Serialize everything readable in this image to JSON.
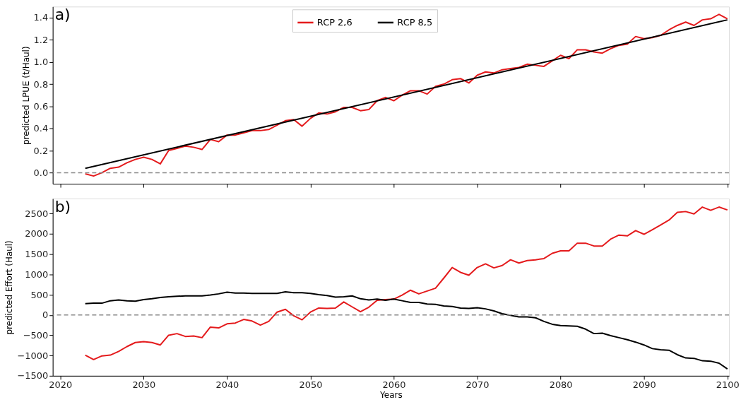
{
  "chart_data": [
    {
      "type": "line",
      "title": "a)",
      "ylabel": "predicted LPUE (t/Haul)",
      "xlim": [
        2019.1,
        2100.2
      ],
      "xticks": [
        2020,
        2030,
        2040,
        2050,
        2060,
        2070,
        2080,
        2090,
        2100
      ],
      "ylim": [
        -0.1,
        1.5
      ],
      "yticks": [
        {
          "value": 0,
          "label": "0.0"
        },
        0.2,
        0.4,
        0.6,
        0.8,
        {
          "value": 1,
          "label": "1.0"
        },
        1.2,
        1.4
      ],
      "tick_labels": "y",
      "grid": false,
      "legend": "top",
      "marker": "none",
      "line_style": "solid",
      "x": [
        2023,
        2024,
        2025,
        2026,
        2027,
        2028,
        2029,
        2030,
        2031,
        2032,
        2033,
        2034,
        2035,
        2036,
        2037,
        2038,
        2039,
        2040,
        2041,
        2042,
        2043,
        2044,
        2045,
        2046,
        2047,
        2048,
        2049,
        2050,
        2051,
        2052,
        2053,
        2054,
        2055,
        2056,
        2057,
        2058,
        2059,
        2060,
        2061,
        2062,
        2063,
        2064,
        2065,
        2066,
        2067,
        2068,
        2069,
        2070,
        2071,
        2072,
        2073,
        2074,
        2075,
        2076,
        2077,
        2078,
        2079,
        2080,
        2081,
        2082,
        2083,
        2084,
        2085,
        2086,
        2087,
        2088,
        2089,
        2090,
        2091,
        2092,
        2093,
        2094,
        2095,
        2096,
        2097,
        2098,
        2099,
        2100
      ],
      "series": [
        {
          "name": "RCP 2,6",
          "color": "#e41a1c",
          "values": [
            -0.01,
            -0.03,
            0.0,
            0.04,
            0.05,
            0.09,
            0.12,
            0.14,
            0.12,
            0.08,
            0.2,
            0.22,
            0.24,
            0.23,
            0.21,
            0.3,
            0.28,
            0.34,
            0.34,
            0.36,
            0.38,
            0.38,
            0.39,
            0.43,
            0.47,
            0.48,
            0.42,
            0.49,
            0.54,
            0.53,
            0.55,
            0.59,
            0.59,
            0.56,
            0.57,
            0.65,
            0.68,
            0.65,
            0.7,
            0.74,
            0.74,
            0.71,
            0.78,
            0.8,
            0.84,
            0.85,
            0.81,
            0.88,
            0.91,
            0.9,
            0.93,
            0.94,
            0.95,
            0.98,
            0.97,
            0.96,
            1.01,
            1.06,
            1.03,
            1.11,
            1.11,
            1.09,
            1.08,
            1.12,
            1.15,
            1.16,
            1.23,
            1.21,
            1.22,
            1.24,
            1.29,
            1.33,
            1.36,
            1.33,
            1.38,
            1.39,
            1.43,
            1.39
          ]
        },
        {
          "name": "RCP 8,5",
          "color": "#000000",
          "x": [
            2023,
            2100
          ],
          "values": [
            0.04,
            1.38
          ]
        }
      ],
      "ref_lines": [
        {
          "axis": "y",
          "value": 0,
          "color": "#888888",
          "line_style": "dashed"
        }
      ]
    },
    {
      "type": "line",
      "title": "b)",
      "xlabel": "Years",
      "ylabel": "predicted Effort (Haul)",
      "xlim": [
        2019.1,
        2100.2
      ],
      "xticks": [
        2020,
        2030,
        2040,
        2050,
        2060,
        2070,
        2080,
        2090,
        2100
      ],
      "ylim": [
        -1500,
        2870
      ],
      "yticks": [
        {
          "value": -1500,
          "label": "−1500"
        },
        {
          "value": -1000,
          "label": "−1000"
        },
        {
          "value": -500,
          "label": "−500"
        },
        0,
        500,
        1000,
        1500,
        2000,
        2500
      ],
      "grid": false,
      "marker": "none",
      "line_style": "solid",
      "x": [
        2023,
        2024,
        2025,
        2026,
        2027,
        2028,
        2029,
        2030,
        2031,
        2032,
        2033,
        2034,
        2035,
        2036,
        2037,
        2038,
        2039,
        2040,
        2041,
        2042,
        2043,
        2044,
        2045,
        2046,
        2047,
        2048,
        2049,
        2050,
        2051,
        2052,
        2053,
        2054,
        2055,
        2056,
        2057,
        2058,
        2059,
        2060,
        2061,
        2062,
        2063,
        2064,
        2065,
        2066,
        2067,
        2068,
        2069,
        2070,
        2071,
        2072,
        2073,
        2074,
        2075,
        2076,
        2077,
        2078,
        2079,
        2080,
        2081,
        2082,
        2083,
        2084,
        2085,
        2086,
        2087,
        2088,
        2089,
        2090,
        2091,
        2092,
        2093,
        2094,
        2095,
        2096,
        2097,
        2098,
        2099,
        2100
      ],
      "series": [
        {
          "color": "#e41a1c",
          "values": [
            -990,
            -1100,
            -1010,
            -990,
            -900,
            -780,
            -680,
            -660,
            -680,
            -740,
            -500,
            -460,
            -530,
            -520,
            -560,
            -300,
            -320,
            -220,
            -200,
            -110,
            -150,
            -250,
            -160,
            70,
            140,
            -20,
            -120,
            70,
            170,
            160,
            170,
            320,
            200,
            80,
            190,
            360,
            380,
            390,
            490,
            610,
            520,
            590,
            660,
            910,
            1170,
            1050,
            980,
            1170,
            1260,
            1160,
            1220,
            1360,
            1280,
            1340,
            1360,
            1390,
            1520,
            1580,
            1580,
            1770,
            1770,
            1700,
            1700,
            1870,
            1970,
            1950,
            2080,
            1990,
            2100,
            2220,
            2340,
            2530,
            2550,
            2490,
            2660,
            2580,
            2660,
            2590
          ]
        },
        {
          "color": "#000000",
          "values": [
            280,
            290,
            290,
            350,
            370,
            350,
            340,
            380,
            400,
            430,
            450,
            460,
            470,
            470,
            470,
            490,
            520,
            560,
            540,
            540,
            530,
            530,
            530,
            530,
            570,
            550,
            550,
            530,
            500,
            480,
            440,
            450,
            470,
            400,
            370,
            390,
            360,
            390,
            350,
            310,
            310,
            270,
            260,
            220,
            210,
            170,
            160,
            180,
            150,
            100,
            30,
            -10,
            -50,
            -50,
            -70,
            -160,
            -230,
            -260,
            -270,
            -280,
            -350,
            -460,
            -450,
            -510,
            -560,
            -610,
            -670,
            -740,
            -830,
            -860,
            -870,
            -980,
            -1060,
            -1070,
            -1130,
            -1140,
            -1190,
            -1330
          ]
        }
      ],
      "ref_lines": [
        {
          "axis": "y",
          "value": 0,
          "color": "#888888",
          "line_style": "dashed"
        }
      ]
    }
  ]
}
